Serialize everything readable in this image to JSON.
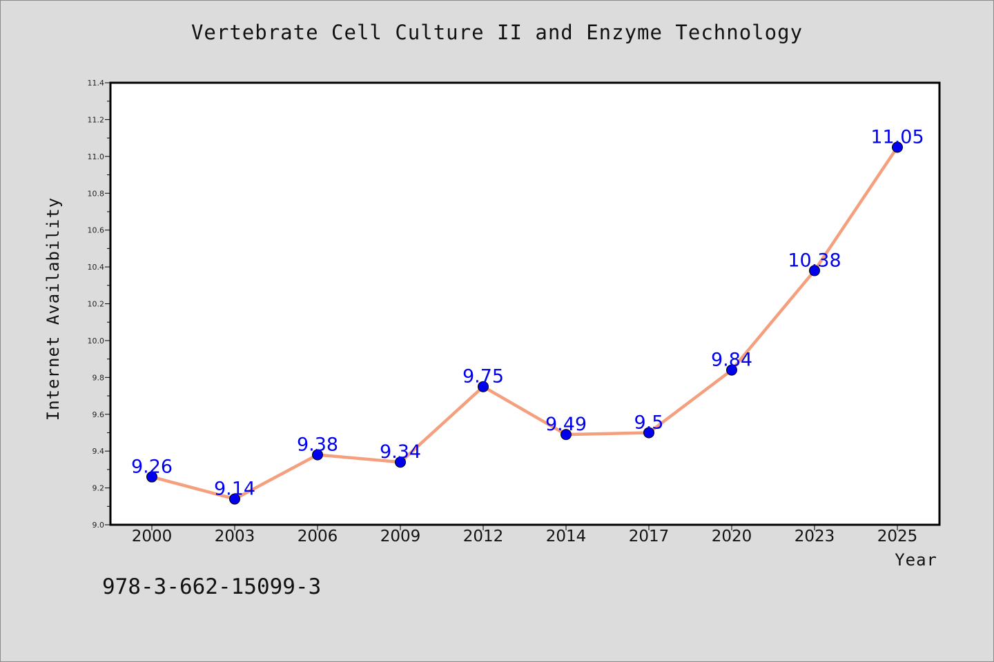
{
  "figure": {
    "isbn_text": "978-3-662-15099-3"
  },
  "chart_data": {
    "type": "line",
    "title": "Vertebrate Cell Culture II and Enzyme Technology",
    "xlabel": "Year",
    "ylabel": "Internet Availability",
    "categories": [
      "2000",
      "2003",
      "2006",
      "2009",
      "2012",
      "2014",
      "2017",
      "2020",
      "2023",
      "2025"
    ],
    "values": [
      9.26,
      9.14,
      9.38,
      9.34,
      9.75,
      9.49,
      9.5,
      9.84,
      10.38,
      11.05
    ],
    "data_labels": [
      "9.26",
      "9.14",
      "9.38",
      "9.34",
      "9.75",
      "9.49",
      "9.5",
      "9.84",
      "10.38",
      "11.05"
    ],
    "ylim": [
      9.0,
      11.4
    ],
    "yticks": [
      "9.0",
      "9.2",
      "9.4",
      "9.6",
      "9.8",
      "10.0",
      "10.2",
      "10.4",
      "10.6",
      "10.8",
      "11.0",
      "11.2",
      "11.4"
    ],
    "grid": false,
    "line_color": "#f4a07f",
    "marker_color": "#0000ee"
  }
}
